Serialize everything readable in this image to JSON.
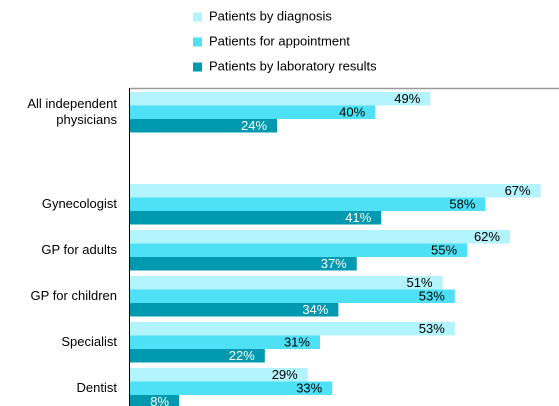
{
  "chart_data": {
    "type": "hbar",
    "categories": [
      "All independent physicians",
      null,
      "Gynecologist",
      "GP for adults",
      "GP for children",
      "Specialist",
      "Dentist"
    ],
    "series": [
      {
        "name": "Patients by diagnosis",
        "color": "#b3f3fb",
        "values": [
          49,
          null,
          67,
          62,
          51,
          53,
          29
        ],
        "value_labels": [
          "49%",
          null,
          "67%",
          "62%",
          "51%",
          "53%",
          "29%"
        ]
      },
      {
        "name": "Patients for appointment",
        "color": "#4ee0f5",
        "values": [
          40,
          null,
          58,
          55,
          53,
          31,
          33
        ],
        "value_labels": [
          "40%",
          null,
          "58%",
          "55%",
          "53%",
          "31%",
          "33%"
        ]
      },
      {
        "name": "Patients by laboratory results",
        "color": "#0099b0",
        "values": [
          24,
          null,
          41,
          37,
          34,
          22,
          8
        ],
        "value_labels": [
          "24%",
          null,
          "41%",
          "37%",
          "34%",
          "22%",
          "8%"
        ]
      }
    ],
    "xlim": [
      0,
      70
    ],
    "legend": "top"
  }
}
